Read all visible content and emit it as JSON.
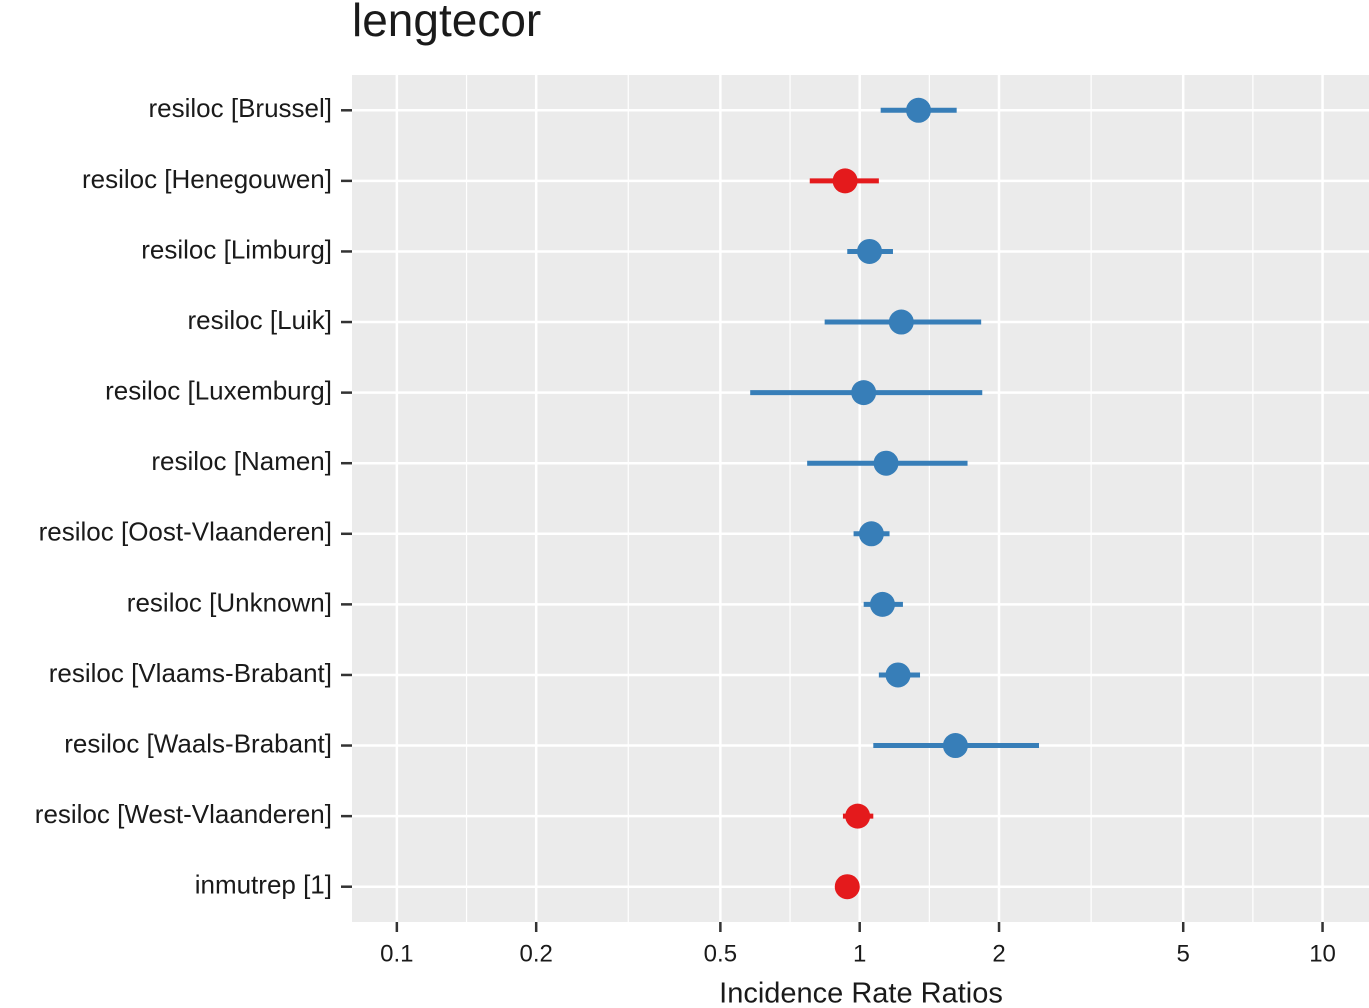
{
  "chart_data": {
    "type": "forest",
    "title": "lengtecor",
    "x_label": "Incidence Rate Ratios",
    "categories": [
      "resiloc [Brussel]",
      "resiloc [Henegouwen]",
      "resiloc [Limburg]",
      "resiloc [Luik]",
      "resiloc [Luxemburg]",
      "resiloc [Namen]",
      "resiloc [Oost-Vlaanderen]",
      "resiloc [Unknown]",
      "resiloc [Vlaams-Brabant]",
      "resiloc [Waals-Brabant]",
      "resiloc [West-Vlaanderen]",
      "inmutrep [1]"
    ],
    "values": [
      1.34,
      0.93,
      1.05,
      1.23,
      1.02,
      1.14,
      1.06,
      1.12,
      1.21,
      1.61,
      0.99,
      0.94
    ],
    "lower": [
      1.11,
      0.78,
      0.94,
      0.84,
      0.58,
      0.77,
      0.97,
      1.02,
      1.1,
      1.07,
      0.92,
      0.93
    ],
    "upper": [
      1.62,
      1.1,
      1.18,
      1.83,
      1.84,
      1.71,
      1.16,
      1.24,
      1.35,
      2.44,
      1.07,
      0.95
    ],
    "colors": [
      "#377eb8",
      "#e41a1c",
      "#377eb8",
      "#377eb8",
      "#377eb8",
      "#377eb8",
      "#377eb8",
      "#377eb8",
      "#377eb8",
      "#377eb8",
      "#e41a1c",
      "#e41a1c"
    ],
    "xlim": [
      0.08,
      12.6
    ],
    "xticks": [
      0.1,
      0.2,
      0.5,
      1,
      2,
      5,
      10
    ],
    "log_x": true,
    "grid": true,
    "minor_grid": true
  }
}
